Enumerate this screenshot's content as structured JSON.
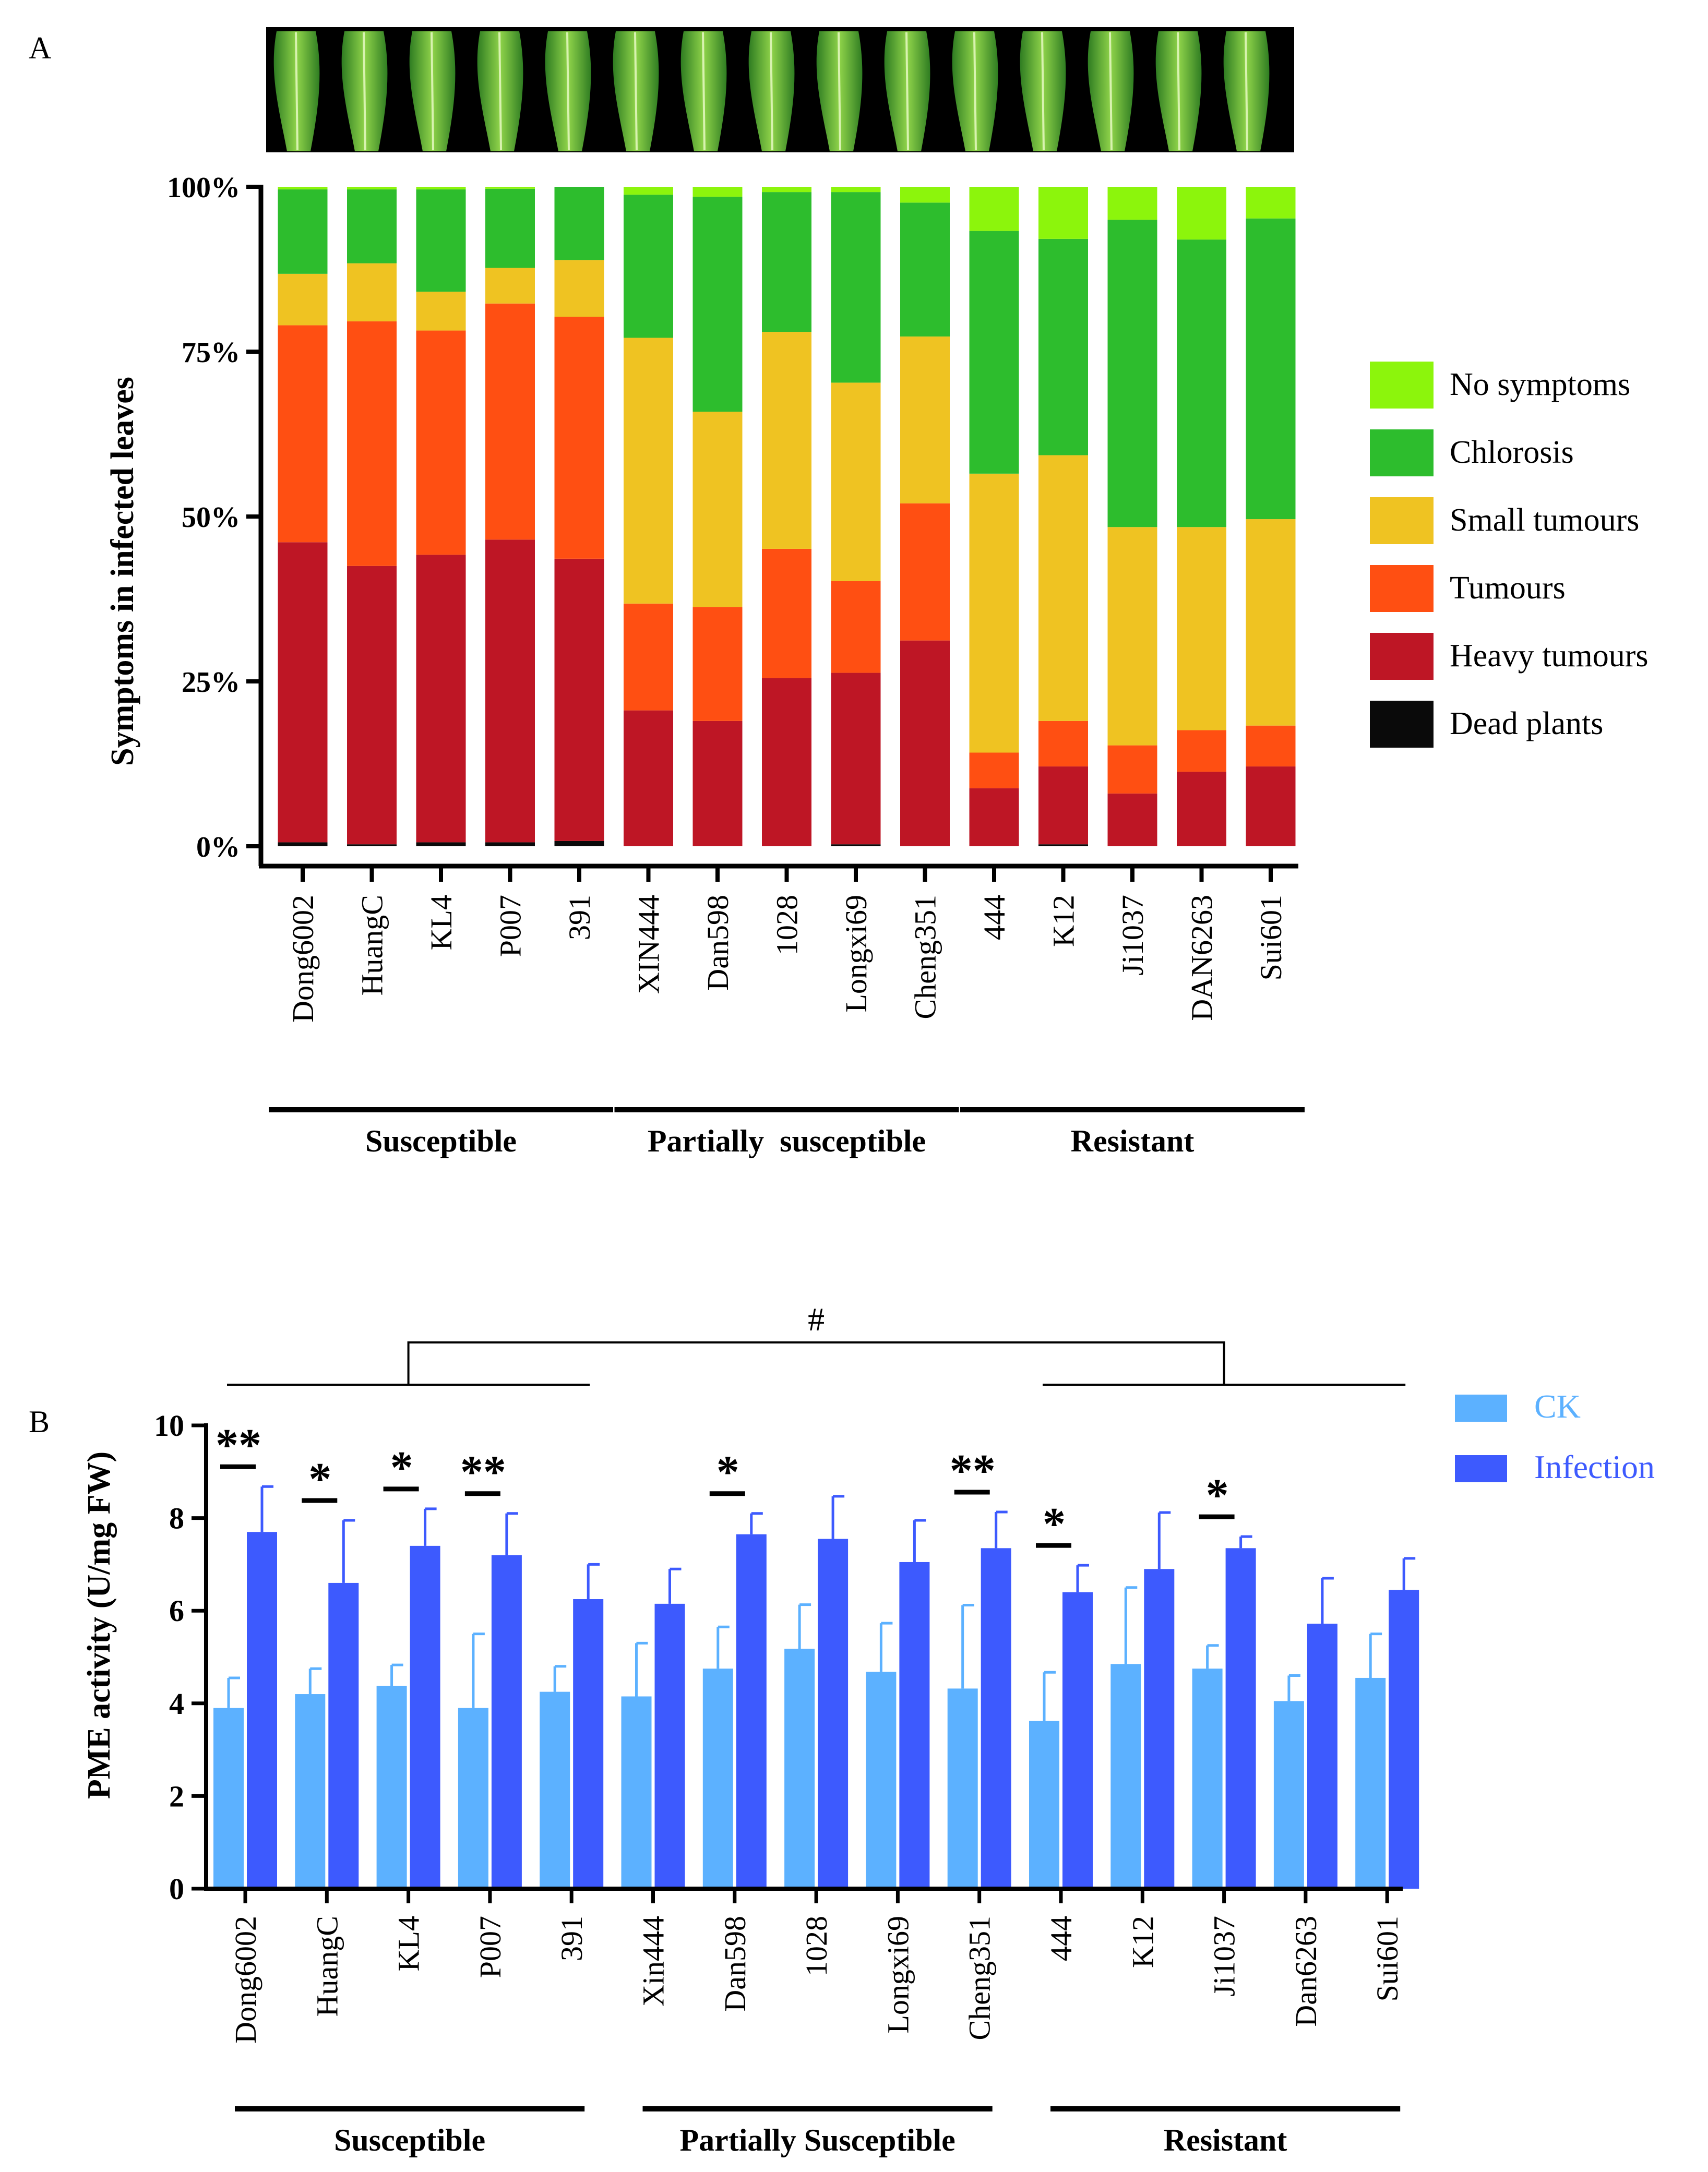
{
  "colors": {
    "no_symptoms": "#8cf50c",
    "chlorosis": "#2dbd2d",
    "small_tumours": "#efc322",
    "tumours": "#ff4f12",
    "heavy_tumours": "#be1625",
    "dead_plants": "#0a0a0a",
    "ck": "#5cb1ff",
    "infection": "#3d5afe",
    "ck_legend_text": "#5cb1ff",
    "infection_legend_text": "#3d5afe"
  },
  "chart_data": [
    {
      "panel": "A",
      "type": "bar",
      "stacked": true,
      "photo_strip": "leaf-photo-strip",
      "ylabel": "Symptoms in infected leaves",
      "ylim": [
        0,
        100
      ],
      "yticks": [
        {
          "value": 0,
          "label": "0%"
        },
        {
          "value": 25,
          "label": "25%"
        },
        {
          "value": 50,
          "label": "50%"
        },
        {
          "value": 75,
          "label": "75%"
        },
        {
          "value": 100,
          "label": "100%"
        }
      ],
      "categories": [
        "Dong6002",
        "HuangC",
        "KL4",
        "P007",
        "391",
        "XIN444",
        "Dan598",
        "1028",
        "Longxi69",
        "Cheng351",
        "444",
        "K12",
        "Ji1037",
        "DAN6263",
        "Sui601"
      ],
      "series": [
        {
          "name": "Dead plants",
          "color_key": "dead_plants",
          "values": [
            0.6,
            0.3,
            0.6,
            0.6,
            0.8,
            0,
            0,
            0,
            0.3,
            0,
            0,
            0.3,
            0,
            0,
            0
          ]
        },
        {
          "name": "Heavy tumours",
          "color_key": "heavy_tumours",
          "values": [
            45.5,
            42.2,
            43.6,
            45.9,
            42.8,
            20.6,
            19.0,
            25.5,
            26.0,
            31.2,
            8.8,
            11.8,
            8.0,
            11.3,
            12.1
          ]
        },
        {
          "name": "Tumours",
          "color_key": "tumours",
          "values": [
            32.9,
            37.1,
            34.0,
            35.8,
            36.7,
            16.2,
            17.3,
            19.6,
            13.9,
            20.8,
            5.4,
            6.9,
            7.3,
            6.3,
            6.2
          ]
        },
        {
          "name": "Small tumours",
          "color_key": "small_tumours",
          "values": [
            7.8,
            8.8,
            5.9,
            5.4,
            8.6,
            40.3,
            29.6,
            32.9,
            30.1,
            25.3,
            42.3,
            40.3,
            33.1,
            30.8,
            31.3
          ]
        },
        {
          "name": "Chlorosis",
          "color_key": "chlorosis",
          "values": [
            12.8,
            11.2,
            15.5,
            12.0,
            11.1,
            21.7,
            32.6,
            21.2,
            28.9,
            20.3,
            36.8,
            32.8,
            46.6,
            43.6,
            45.6
          ]
        },
        {
          "name": "No symptoms",
          "color_key": "no_symptoms",
          "values": [
            0.4,
            0.4,
            0.4,
            0.3,
            0,
            1.2,
            1.5,
            0.8,
            0.8,
            2.4,
            6.7,
            7.9,
            5.0,
            8.0,
            4.8
          ]
        }
      ],
      "legend": [
        "No symptoms",
        "Chlorosis",
        "Small tumours",
        "Tumours",
        "Heavy tumours",
        "Dead plants"
      ],
      "legend_position": "right",
      "legend_order_keys": [
        "no_symptoms",
        "chlorosis",
        "small_tumours",
        "tumours",
        "heavy_tumours",
        "dead_plants"
      ],
      "groups": [
        {
          "label": "Susceptible",
          "start": 0,
          "end": 4
        },
        {
          "label": "Partially  susceptible",
          "start": 5,
          "end": 9
        },
        {
          "label": "Resistant",
          "start": 10,
          "end": 14
        }
      ]
    },
    {
      "panel": "B",
      "type": "bar",
      "ylabel": "PME activity (U/mg FW)",
      "ylim": [
        0,
        10
      ],
      "yticks": [
        0,
        2,
        4,
        6,
        8,
        10
      ],
      "categories": [
        "Dong6002",
        "HuangC",
        "KL4",
        "P007",
        "391",
        "Xin444",
        "Dan598",
        "1028",
        "Longxi69",
        "Cheng351",
        "444",
        "K12",
        "Ji1037",
        "Dan6263",
        "Sui601"
      ],
      "series": [
        {
          "name": "CK",
          "color_key": "ck",
          "values": [
            3.9,
            4.2,
            4.38,
            3.9,
            4.25,
            4.15,
            4.75,
            5.18,
            4.68,
            4.32,
            3.62,
            4.85,
            4.75,
            4.05,
            4.55
          ],
          "errors": [
            0.65,
            0.55,
            0.45,
            1.6,
            0.55,
            1.15,
            0.9,
            0.95,
            1.05,
            1.8,
            1.05,
            1.65,
            0.5,
            0.55,
            0.95
          ]
        },
        {
          "name": "Infection",
          "color_key": "infection",
          "values": [
            7.7,
            6.6,
            7.4,
            7.2,
            6.25,
            6.15,
            7.65,
            7.55,
            7.05,
            7.35,
            6.4,
            6.9,
            7.35,
            5.72,
            6.45
          ],
          "errors": [
            0.98,
            1.35,
            0.8,
            0.9,
            0.75,
            0.75,
            0.45,
            0.92,
            0.9,
            0.78,
            0.58,
            1.22,
            0.25,
            0.98,
            0.68
          ]
        }
      ],
      "significance": [
        {
          "index": 0,
          "label": "**"
        },
        {
          "index": 1,
          "label": "*"
        },
        {
          "index": 2,
          "label": "*"
        },
        {
          "index": 3,
          "label": "**"
        },
        {
          "index": 6,
          "label": "*"
        },
        {
          "index": 9,
          "label": "**"
        },
        {
          "index": 10,
          "label": "*"
        },
        {
          "index": 12,
          "label": "*"
        }
      ],
      "group_comparison": {
        "label": "#",
        "from_group": 0,
        "to_group": 2
      },
      "legend": [
        "CK",
        "Infection"
      ],
      "legend_position": "top-right",
      "groups": [
        {
          "label": "Susceptible",
          "start": 0,
          "end": 4
        },
        {
          "label": "Partially Susceptible",
          "start": 5,
          "end": 9
        },
        {
          "label": "Resistant",
          "start": 10,
          "end": 14
        }
      ]
    }
  ],
  "panel_labels": {
    "a": "A",
    "b": "B"
  }
}
